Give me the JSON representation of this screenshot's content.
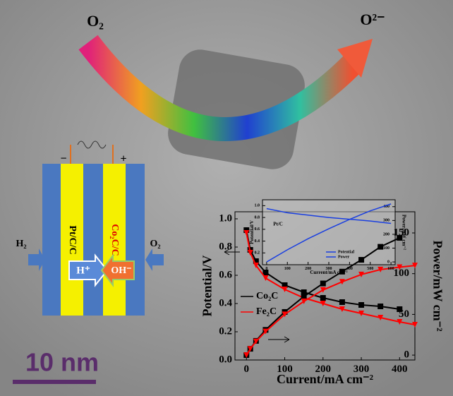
{
  "labels": {
    "o2_top": "O₂",
    "o2minus_top": "O²⁻",
    "scale_bar": "10 nm",
    "h2": "H₂",
    "o2_right": "O₂",
    "anode": "Pt/C/C",
    "cathode": "Co₂C/C",
    "hplus": "H⁺",
    "ohminus": "OH⁻",
    "minus": "−",
    "plus": "+"
  },
  "chart_data": [
    {
      "type": "line",
      "x_label": "Current/mA cm⁻²",
      "y_label": "Potential/V",
      "y2_label": "Power/mW cm⁻²",
      "x": [
        0,
        10,
        25,
        50,
        100,
        150,
        200,
        250,
        300,
        350,
        400,
        440
      ],
      "xlim": [
        -30,
        440
      ],
      "xticks": [
        0,
        100,
        200,
        300,
        400
      ],
      "ylim": [
        0,
        1.05
      ],
      "yticks": [
        {
          "value": 0,
          "label": "0.0"
        },
        0.2,
        0.4,
        0.6,
        0.8,
        {
          "value": 1,
          "label": "1.0"
        }
      ],
      "y2lim": [
        -6,
        176
      ],
      "y2ticks": [
        0,
        50,
        100,
        150
      ],
      "series": [
        {
          "name": "Co₂C",
          "color": "#000000",
          "marker": "square",
          "values": [
            0.92,
            0.78,
            0.7,
            0.62,
            0.53,
            0.48,
            0.44,
            0.41,
            0.39,
            0.38,
            0.36,
            null
          ]
        },
        {
          "name": "Fe₂C",
          "color": "#ff0000",
          "marker": "triangle",
          "values": [
            0.9,
            0.76,
            0.67,
            0.58,
            0.5,
            0.44,
            0.4,
            0.36,
            0.33,
            0.3,
            0.27,
            0.25
          ]
        },
        {
          "color": "#000000",
          "marker": "square",
          "axis": "y2",
          "values": [
            0,
            7.8,
            17.5,
            31,
            53,
            72,
            88,
            102.5,
            117,
            133,
            144,
            null
          ]
        },
        {
          "color": "#ff0000",
          "marker": "triangle",
          "axis": "y2",
          "values": [
            0,
            7.6,
            16.8,
            29,
            50,
            66,
            80,
            90,
            99,
            105,
            108,
            110
          ]
        }
      ]
    },
    {
      "type": "line",
      "x_label": "Current/mA cm⁻²",
      "y_label": "Potential/V",
      "y2_label": "Power/mW cm⁻²",
      "annotation": "Pt/C",
      "x": [
        0,
        100,
        200,
        300,
        400,
        500,
        600
      ],
      "xlim": [
        -20,
        620
      ],
      "xticks": [
        0,
        100,
        200,
        300,
        400,
        500,
        600
      ],
      "ylim": [
        0,
        1.1
      ],
      "yticks": [
        0.2,
        0.4,
        0.6,
        0.8,
        {
          "value": 1,
          "label": "1.0"
        }
      ],
      "y2lim": [
        -20,
        450
      ],
      "y2ticks": [
        0,
        100,
        200,
        300,
        400
      ],
      "series": [
        {
          "name": "Potential",
          "color": "#1a3fe0",
          "values": [
            0.95,
            0.88,
            0.84,
            0.8,
            0.77,
            0.74,
            0.7
          ]
        },
        {
          "name": "Power",
          "color": "#1a3fe0",
          "axis": "y2",
          "values": [
            0,
            88,
            168,
            240,
            308,
            370,
            420
          ]
        }
      ]
    }
  ]
}
